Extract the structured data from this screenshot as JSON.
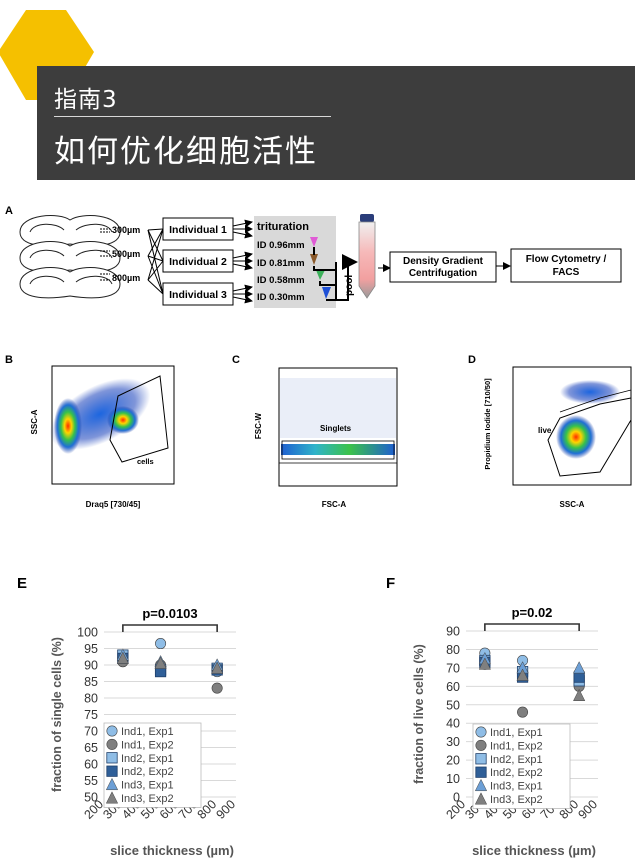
{
  "header": {
    "subtitle": "指南3",
    "title": "如何优化细胞活性"
  },
  "panel_a": {
    "label": "A",
    "thicknesses": [
      "300µm",
      "500µm",
      "800µm"
    ],
    "individuals": [
      "Individual 1",
      "Individual 2",
      "Individual 3"
    ],
    "trituration": "trituration",
    "ids": [
      "ID 0.96mm",
      "ID 0.81mm",
      "ID 0.58mm",
      "ID 0.30mm"
    ],
    "pool": "pool",
    "density_gradient": [
      "Density Gradient",
      "Centrifugation"
    ],
    "flow": [
      "Flow Cytometry /",
      "FACS"
    ]
  },
  "panel_b": {
    "label": "B",
    "ylabel": "SSC-A",
    "xlabel": "Draq5 [730/45]",
    "gate": "cells"
  },
  "panel_c": {
    "label": "C",
    "ylabel": "FSC-W",
    "xlabel": "FSC-A",
    "gate": "Singlets"
  },
  "panel_d": {
    "label": "D",
    "ylabel": "Propidium Iodide [710/50]",
    "xlabel": "SSC-A",
    "gate": "live"
  },
  "colors": {
    "header_bg": "#3d3d3d",
    "hexagon": "#f5c000",
    "grid": "#d9d9d9",
    "ind1": "#8fbde6",
    "ind2": "#2f5f98",
    "ind3": "#6c9fd6",
    "grey": "#777777"
  },
  "chart_data": [
    {
      "type": "scatter",
      "panel_label": "E",
      "title": "p=0.0103",
      "xlabel": "slice thickness (µm)",
      "ylabel": "fraction of single cells (%)",
      "xlim": [
        200,
        900
      ],
      "ylim": [
        50,
        100
      ],
      "xticks": [
        200,
        300,
        400,
        500,
        600,
        700,
        800,
        900
      ],
      "yticks": [
        50,
        55,
        60,
        65,
        70,
        75,
        80,
        85,
        90,
        95,
        100
      ],
      "grid": true,
      "legend_position": "bottom-left",
      "series": [
        {
          "name": "Ind1, Exp1",
          "marker": "circle",
          "color": "#8fbde6",
          "x": [
            300,
            500,
            800
          ],
          "y": [
            92,
            96.5,
            88
          ]
        },
        {
          "name": "Ind1, Exp2",
          "marker": "circle",
          "color": "#7f7f7f",
          "x": [
            300,
            500,
            800
          ],
          "y": [
            91,
            90,
            83
          ]
        },
        {
          "name": "Ind2, Exp1",
          "marker": "square",
          "color": "#8fbde6",
          "x": [
            300,
            500,
            800
          ],
          "y": [
            93,
            88.5,
            89
          ]
        },
        {
          "name": "Ind2, Exp2",
          "marker": "square",
          "color": "#2f5f98",
          "x": [
            300,
            500,
            800
          ],
          "y": [
            92,
            88,
            88.5
          ]
        },
        {
          "name": "Ind3, Exp1",
          "marker": "triangle",
          "color": "#6c9fd6",
          "x": [
            300,
            500,
            800
          ],
          "y": [
            93,
            91,
            90
          ]
        },
        {
          "name": "Ind3, Exp2",
          "marker": "triangle",
          "color": "#7f7f7f",
          "x": [
            300,
            500,
            800
          ],
          "y": [
            92,
            90.5,
            89
          ]
        }
      ]
    },
    {
      "type": "scatter",
      "panel_label": "F",
      "title": "p=0.02",
      "xlabel": "slice thickness (µm)",
      "ylabel": "fraction of live cells (%)",
      "xlim": [
        200,
        900
      ],
      "ylim": [
        0,
        90
      ],
      "xticks": [
        200,
        300,
        400,
        500,
        600,
        700,
        800,
        900
      ],
      "yticks": [
        0,
        10,
        20,
        30,
        40,
        50,
        60,
        70,
        80,
        90
      ],
      "grid": true,
      "legend_position": "bottom-left",
      "series": [
        {
          "name": "Ind1, Exp1",
          "marker": "circle",
          "color": "#8fbde6",
          "x": [
            300,
            500,
            800
          ],
          "y": [
            78,
            74,
            67
          ]
        },
        {
          "name": "Ind1, Exp2",
          "marker": "circle",
          "color": "#7f7f7f",
          "x": [
            300,
            500,
            800
          ],
          "y": [
            72,
            46,
            60
          ]
        },
        {
          "name": "Ind2, Exp1",
          "marker": "square",
          "color": "#8fbde6",
          "x": [
            300,
            500,
            800
          ],
          "y": [
            74,
            68,
            63
          ]
        },
        {
          "name": "Ind2, Exp2",
          "marker": "square",
          "color": "#2f5f98",
          "x": [
            300,
            500,
            800
          ],
          "y": [
            73,
            65,
            65
          ]
        },
        {
          "name": "Ind3, Exp1",
          "marker": "triangle",
          "color": "#6c9fd6",
          "x": [
            300,
            500,
            800
          ],
          "y": [
            75,
            70,
            70
          ]
        },
        {
          "name": "Ind3, Exp2",
          "marker": "triangle",
          "color": "#7f7f7f",
          "x": [
            300,
            500,
            800
          ],
          "y": [
            72,
            66,
            55
          ]
        }
      ]
    }
  ]
}
